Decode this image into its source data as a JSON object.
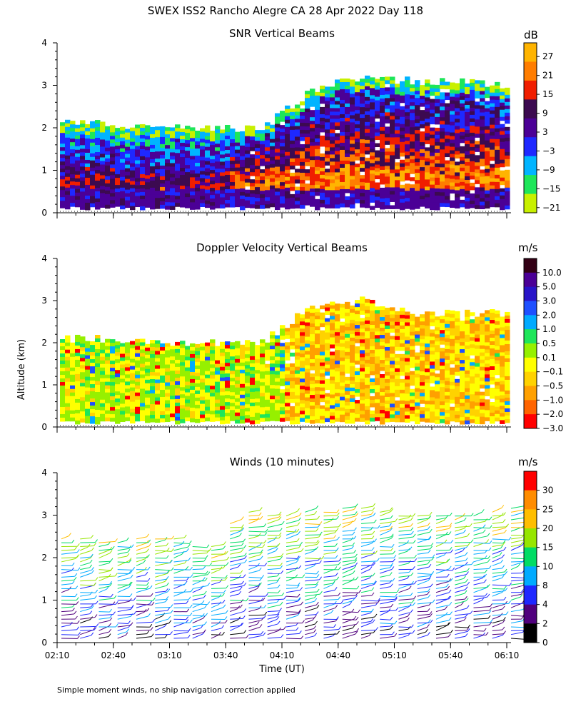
{
  "title": "SWEX ISS2 Rancho Alegre CA  28 Apr 2022 Day 118",
  "y_axis_label": "Altitude (km)",
  "x_axis_label": "Time (UT)",
  "footnote": "Simple moment winds, no ship navigation correction applied",
  "chart_data": [
    {
      "type": "heatmap",
      "title": "SNR Vertical Beams",
      "colorbar_unit": "dB",
      "colorbar_ticks": [
        "27",
        "21",
        "15",
        "9",
        "3",
        "−3",
        "−9",
        "−15",
        "−21"
      ],
      "colorbar_colors": [
        "#ffb400",
        "#ff7d00",
        "#f01e00",
        "#3c0a50",
        "#4b0096",
        "#1e28ff",
        "#00b4ff",
        "#1ee65a",
        "#c8f000"
      ],
      "y_ticks": [
        "0",
        "1",
        "2",
        "3",
        "4"
      ],
      "ylim": [
        0,
        4
      ],
      "x_ticks": [
        "02:10",
        "02:40",
        "03:10",
        "03:40",
        "04:10",
        "04:40",
        "05:10",
        "05:40",
        "06:10"
      ],
      "xlim": [
        "02:10",
        "06:10"
      ],
      "data_top_km": [
        2.1,
        2.1,
        2.0,
        2.0,
        2.0,
        2.9,
        3.2,
        3.1,
        3.1,
        3.0
      ],
      "data_time_marks": [
        "02:10",
        "02:37",
        "03:04",
        "03:31",
        "03:58",
        "04:25",
        "04:52",
        "05:19",
        "05:46",
        "06:10"
      ]
    },
    {
      "type": "heatmap",
      "title": "Doppler Velocity Vertical Beams",
      "colorbar_unit": "m/s",
      "colorbar_ticks": [
        "10.0",
        "5.0",
        "3.0",
        "2.0",
        "1.0",
        "0.5",
        "0.1",
        "−0.1",
        "−0.5",
        "−1.0",
        "−2.0",
        "−3.0"
      ],
      "colorbar_colors": [
        "#320014",
        "#4b0096",
        "#2814c8",
        "#1e50ff",
        "#00aaff",
        "#1ee65a",
        "#96f000",
        "#ffff00",
        "#ffd200",
        "#ffa000",
        "#ff6400",
        "#ff0000"
      ],
      "y_ticks": [
        "0",
        "1",
        "2",
        "3",
        "4"
      ],
      "ylim": [
        0,
        4
      ],
      "x_ticks": [
        "02:10",
        "02:40",
        "03:10",
        "03:40",
        "04:10",
        "04:40",
        "05:10",
        "05:40",
        "06:10"
      ],
      "xlim": [
        "02:10",
        "06:10"
      ],
      "data_top_km": [
        2.1,
        2.1,
        2.0,
        2.0,
        2.0,
        2.9,
        3.0,
        2.7,
        2.7,
        2.7
      ]
    },
    {
      "type": "scatter",
      "title": "Winds (10 minutes)",
      "colorbar_unit": "m/s",
      "colorbar_ticks": [
        "30",
        "25",
        "20",
        "15",
        "10",
        "8",
        "4",
        "2",
        "0"
      ],
      "colorbar_colors": [
        "#ff0000",
        "#ff8c00",
        "#ffbe00",
        "#96e600",
        "#00dc64",
        "#00aaff",
        "#1e28ff",
        "#50007d",
        "#000000"
      ],
      "y_ticks": [
        "0",
        "1",
        "2",
        "3",
        "4"
      ],
      "ylim": [
        0,
        4
      ],
      "x_ticks": [
        "02:10",
        "02:40",
        "03:10",
        "03:40",
        "04:10",
        "04:40",
        "05:10",
        "05:40",
        "06:10"
      ],
      "xlim": [
        "02:10",
        "06:10"
      ],
      "profile_times": [
        "02:10",
        "02:20",
        "02:30",
        "02:40",
        "02:50",
        "03:00",
        "03:10",
        "03:20",
        "03:30",
        "03:40",
        "03:50",
        "04:00",
        "04:10",
        "04:20",
        "04:30",
        "04:40",
        "04:50",
        "05:00",
        "05:10",
        "05:20",
        "05:30",
        "05:40",
        "05:50",
        "06:00",
        "06:10"
      ],
      "profile_top_km": [
        2.5,
        2.5,
        2.4,
        2.4,
        2.5,
        2.5,
        2.5,
        2.3,
        2.3,
        2.8,
        3.1,
        3.0,
        3.0,
        3.1,
        3.1,
        3.2,
        3.2,
        3.1,
        3.0,
        3.0,
        3.0,
        3.0,
        3.0,
        3.1,
        3.2
      ]
    }
  ]
}
